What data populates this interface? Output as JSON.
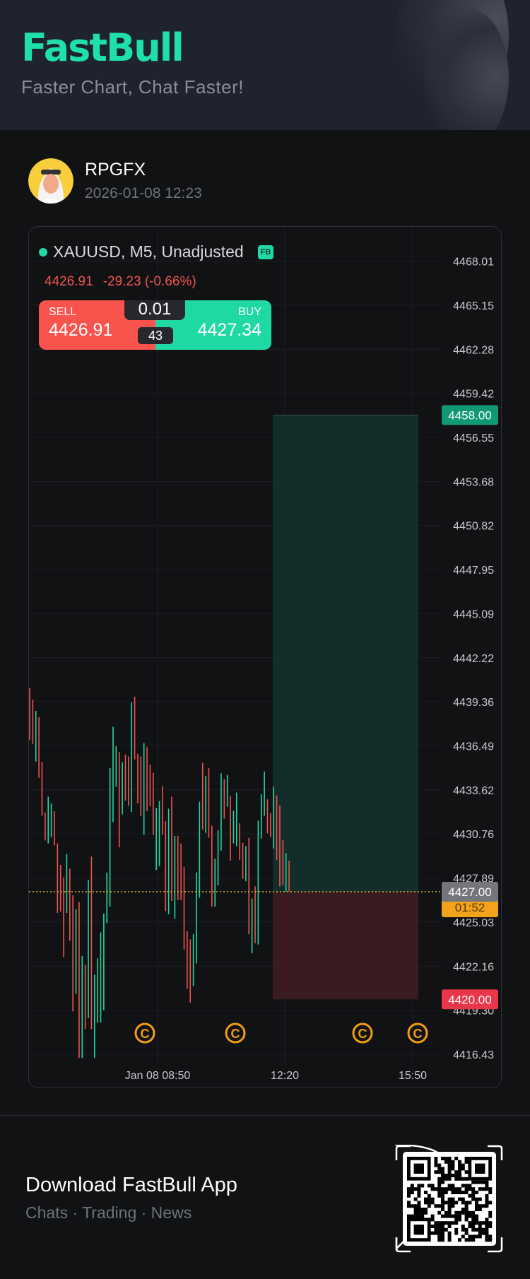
{
  "header": {
    "logo": "FastBull",
    "tagline": "Faster Chart, Chat Faster!"
  },
  "user": {
    "name": "RPGFX",
    "timestamp": "2026-01-08 12:23"
  },
  "chart": {
    "symbol_line": "XAUUSD, M5, Unadjusted",
    "badge": "FB",
    "last_price": "4426.91",
    "change": "-29.23 (-0.66%)",
    "trade": {
      "sell_label": "SELL",
      "sell_price": "4426.91",
      "buy_label": "BUY",
      "buy_price": "4427.34",
      "lot": "0.01",
      "spread": "43"
    },
    "colors": {
      "up": "#1fd9a5",
      "down": "#f0544f",
      "accent": "#1fe0a8",
      "marker": "#f39c12"
    }
  },
  "chart_data": {
    "type": "ohlc",
    "ylim": [
      4416.0,
      4469.5
    ],
    "y_ticks": [
      "4468.01",
      "4465.15",
      "4462.28",
      "4459.42",
      "4456.55",
      "4453.68",
      "4450.82",
      "4447.95",
      "4445.09",
      "4442.22",
      "4439.36",
      "4436.49",
      "4433.62",
      "4430.76",
      "4427.89",
      "4425.03",
      "4422.16",
      "4419.30",
      "4416.43"
    ],
    "x_ticks": [
      "Jan 08 08:50",
      "12:20",
      "15:50"
    ],
    "bars": [
      [
        4436.87,
        4440.23,
        "d"
      ],
      [
        4436.62,
        4439.49,
        "d"
      ],
      [
        4435.47,
        4438.76,
        "u"
      ],
      [
        4434.41,
        4438.35,
        "d"
      ],
      [
        4431.94,
        4435.44,
        "d"
      ],
      [
        4430.34,
        4432.16,
        "d"
      ],
      [
        4430.14,
        4433.18,
        "u"
      ],
      [
        4430.55,
        4432.73,
        "u"
      ],
      [
        4430.01,
        4432.24,
        "d"
      ],
      [
        4425.62,
        4430.14,
        "d"
      ],
      [
        4425.71,
        4428.74,
        "d"
      ],
      [
        4422.75,
        4427.92,
        "d"
      ],
      [
        4425.62,
        4429.45,
        "u"
      ],
      [
        4423.82,
        4428.5,
        "d"
      ],
      [
        4419.22,
        4426.77,
        "d"
      ],
      [
        4420.37,
        4425.87,
        "u"
      ],
      [
        4416.19,
        4426.33,
        "d"
      ],
      [
        4416.19,
        4422.83,
        "u"
      ],
      [
        4418.07,
        4422.26,
        "d"
      ],
      [
        4418.78,
        4427.76,
        "u"
      ],
      [
        4418.07,
        4429.28,
        "d"
      ],
      [
        4416.19,
        4421.6,
        "u"
      ],
      [
        4418.48,
        4422.67,
        "u"
      ],
      [
        4418.48,
        4424.36,
        "u"
      ],
      [
        4419.3,
        4425.58,
        "u"
      ],
      [
        4424.97,
        4428.25,
        "u"
      ],
      [
        4426.03,
        4435.06,
        "u"
      ],
      [
        4431.53,
        4437.72,
        "u"
      ],
      [
        4433.83,
        4436.46,
        "u"
      ],
      [
        4429.89,
        4436.08,
        "d"
      ],
      [
        4432.03,
        4435.42,
        "u"
      ],
      [
        4432.93,
        4435.92,
        "d"
      ],
      [
        4432.6,
        4435.8,
        "d"
      ],
      [
        4432.19,
        4439.3,
        "u"
      ],
      [
        4435.6,
        4439.69,
        "d"
      ],
      [
        4432.76,
        4435.97,
        "d"
      ],
      [
        4431.94,
        4435.8,
        "d"
      ],
      [
        4430.71,
        4436.67,
        "u"
      ],
      [
        4432.24,
        4436.41,
        "d"
      ],
      [
        4432.57,
        4435.26,
        "d"
      ],
      [
        4430.71,
        4434.73,
        "d"
      ],
      [
        4428.41,
        4432.44,
        "u"
      ],
      [
        4428.66,
        4432.9,
        "u"
      ],
      [
        4430.71,
        4433.88,
        "d"
      ],
      [
        4425.74,
        4431.58,
        "d"
      ],
      [
        4425.54,
        4432.4,
        "u"
      ],
      [
        4426.4,
        4433.18,
        "d"
      ],
      [
        4425.25,
        4430.63,
        "u"
      ],
      [
        4426.45,
        4430.63,
        "d"
      ],
      [
        4426.45,
        4430.14,
        "d"
      ],
      [
        4423.24,
        4428.61,
        "d"
      ],
      [
        4420.7,
        4424.43,
        "d"
      ],
      [
        4419.8,
        4423.9,
        "d"
      ],
      [
        4420.86,
        4424.23,
        "u"
      ],
      [
        4422.34,
        4428.25,
        "u"
      ],
      [
        4426.61,
        4432.85,
        "u"
      ],
      [
        4431.04,
        4435.39,
        "d"
      ],
      [
        4430.83,
        4434.54,
        "u"
      ],
      [
        4430.5,
        4435.03,
        "d"
      ],
      [
        4426.03,
        4431.29,
        "d"
      ],
      [
        4426.03,
        4429.15,
        "u"
      ],
      [
        4427.43,
        4430.99,
        "u"
      ],
      [
        4429.68,
        4434.7,
        "u"
      ],
      [
        4431.75,
        4434.32,
        "d"
      ],
      [
        4432.52,
        4434.6,
        "u"
      ],
      [
        4429.02,
        4433.22,
        "d"
      ],
      [
        4430.14,
        4432.27,
        "u"
      ],
      [
        4429.97,
        4433.45,
        "u"
      ],
      [
        4429.07,
        4431.45,
        "d"
      ],
      [
        4427.84,
        4430.17,
        "d"
      ],
      [
        4427.68,
        4429.97,
        "u"
      ],
      [
        4424.23,
        4430.5,
        "d"
      ],
      [
        4423.0,
        4426.56,
        "u"
      ],
      [
        4423.65,
        4427.35,
        "d"
      ],
      [
        4423.57,
        4431.62,
        "u"
      ],
      [
        4430.47,
        4433.34,
        "u"
      ],
      [
        4431.94,
        4434.82,
        "u"
      ],
      [
        4430.8,
        4433.01,
        "d"
      ],
      [
        4430.55,
        4432.11,
        "d"
      ],
      [
        4429.81,
        4433.83,
        "u"
      ],
      [
        4429.07,
        4433.26,
        "d"
      ],
      [
        4427.35,
        4432.6,
        "d"
      ],
      [
        4427.43,
        4430.38,
        "d"
      ],
      [
        4427.02,
        4429.51,
        "u"
      ],
      [
        4427.02,
        4429.02,
        "d"
      ]
    ],
    "position": {
      "take_profit": "4458.00",
      "entry": "4427.00",
      "stop_loss": "4420.00",
      "tp": 4458.0,
      "entry_value": 4427.0,
      "sl": 4420.0,
      "countdown": "01:52"
    },
    "event_markers": 4
  },
  "footer": {
    "title": "Download FastBull App",
    "subtitle": "Chats · Trading · News"
  }
}
